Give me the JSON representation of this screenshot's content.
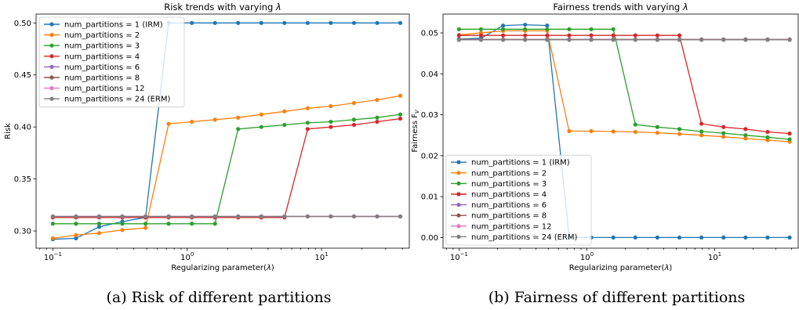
{
  "chart_data": [
    {
      "type": "line",
      "title": "Risk trends with varying λ",
      "xlabel": "Regularizing parameter(λ)",
      "ylabel": "Risk",
      "xscale": "log",
      "xlim": [
        0.075,
        45
      ],
      "ylim": [
        0.2835,
        0.5085
      ],
      "yticks": [
        0.3,
        0.35,
        0.4,
        0.45,
        0.5
      ],
      "ytick_labels": [
        "0.30",
        "0.35",
        "0.40",
        "0.45",
        "0.50"
      ],
      "xticks": [
        0.1,
        1,
        10
      ],
      "xtick_base": "10",
      "xtick_exps": [
        "−1",
        "0",
        "1"
      ],
      "legend_position": "upper-left",
      "caption": "(a) Risk of different partitions",
      "x": [
        0.1,
        0.1487,
        0.2212,
        0.329,
        0.4894,
        0.7279,
        1.0826,
        1.6103,
        2.395,
        3.5622,
        5.2983,
        7.8805,
        11.721,
        17.4333,
        25.9294,
        38.5662
      ],
      "series": [
        {
          "name": "num_partitions = 1 (IRM)",
          "color": "#1f77b4",
          "values": [
            0.292,
            0.293,
            0.304,
            0.309,
            0.313,
            0.5,
            0.5,
            0.5,
            0.5,
            0.5,
            0.5,
            0.5,
            0.5,
            0.5,
            0.5,
            0.5
          ]
        },
        {
          "name": "num_partitions = 2",
          "color": "#ff7f0e",
          "values": [
            0.293,
            0.296,
            0.298,
            0.301,
            0.303,
            0.403,
            0.405,
            0.407,
            0.409,
            0.412,
            0.415,
            0.418,
            0.42,
            0.423,
            0.426,
            0.43
          ]
        },
        {
          "name": "num_partitions = 3",
          "color": "#2ca02c",
          "values": [
            0.307,
            0.307,
            0.307,
            0.307,
            0.307,
            0.307,
            0.307,
            0.307,
            0.398,
            0.4,
            0.402,
            0.404,
            0.405,
            0.407,
            0.409,
            0.412
          ]
        },
        {
          "name": "num_partitions = 4",
          "color": "#d62728",
          "values": [
            0.313,
            0.313,
            0.313,
            0.313,
            0.313,
            0.313,
            0.313,
            0.313,
            0.313,
            0.313,
            0.313,
            0.398,
            0.4,
            0.402,
            0.405,
            0.408
          ]
        },
        {
          "name": "num_partitions = 6",
          "color": "#9467bd",
          "values": [
            0.314,
            0.314,
            0.314,
            0.314,
            0.314,
            0.314,
            0.314,
            0.314,
            0.314,
            0.314,
            0.314,
            0.314,
            0.314,
            0.314,
            0.314,
            0.314
          ]
        },
        {
          "name": "num_partitions = 8",
          "color": "#8c564b",
          "values": [
            0.314,
            0.314,
            0.314,
            0.314,
            0.314,
            0.314,
            0.314,
            0.314,
            0.314,
            0.314,
            0.314,
            0.314,
            0.314,
            0.314,
            0.314,
            0.314
          ]
        },
        {
          "name": "num_partitions = 12",
          "color": "#e377c2",
          "values": [
            0.314,
            0.314,
            0.314,
            0.314,
            0.314,
            0.314,
            0.314,
            0.314,
            0.314,
            0.314,
            0.314,
            0.314,
            0.314,
            0.314,
            0.314,
            0.314
          ]
        },
        {
          "name": "num_partitions = 24 (ERM)",
          "color": "#7f7f7f",
          "values": [
            0.314,
            0.314,
            0.314,
            0.314,
            0.314,
            0.314,
            0.314,
            0.314,
            0.314,
            0.314,
            0.314,
            0.314,
            0.314,
            0.314,
            0.314,
            0.314
          ]
        }
      ]
    },
    {
      "type": "line",
      "title": "Fairness trends with varying λ",
      "xlabel": "Regularizing parameter(λ)",
      "ylabel": "Fairness F",
      "ylabel_sub": "V",
      "xscale": "log",
      "xlim": [
        0.075,
        45
      ],
      "ylim": [
        -0.0026,
        0.0546
      ],
      "yticks": [
        0.0,
        0.01,
        0.02,
        0.03,
        0.04,
        0.05
      ],
      "ytick_labels": [
        "0.00",
        "0.01",
        "0.02",
        "0.03",
        "0.04",
        "0.05"
      ],
      "xticks": [
        0.1,
        1,
        10
      ],
      "xtick_base": "10",
      "xtick_exps": [
        "−1",
        "0",
        "1"
      ],
      "legend_position": "lower-left",
      "caption": "(b) Fairness of different partitions",
      "x": [
        0.1,
        0.1487,
        0.2212,
        0.329,
        0.4894,
        0.7279,
        1.0826,
        1.6103,
        2.395,
        3.5622,
        5.2983,
        7.8805,
        11.721,
        17.4333,
        25.9294,
        38.5662
      ],
      "series": [
        {
          "name": "num_partitions = 1 (IRM)",
          "color": "#1f77b4",
          "values": [
            0.0485,
            0.0487,
            0.0518,
            0.052,
            0.0518,
            0.0,
            0.0,
            0.0,
            0.0,
            0.0,
            0.0,
            0.0,
            0.0,
            0.0,
            0.0,
            0.0
          ]
        },
        {
          "name": "num_partitions = 2",
          "color": "#ff7f0e",
          "values": [
            0.0495,
            0.05,
            0.0505,
            0.0505,
            0.0505,
            0.026,
            0.026,
            0.0259,
            0.0258,
            0.0256,
            0.0253,
            0.025,
            0.0246,
            0.0242,
            0.0238,
            0.0234
          ]
        },
        {
          "name": "num_partitions = 3",
          "color": "#2ca02c",
          "values": [
            0.0509,
            0.0509,
            0.0509,
            0.0509,
            0.0509,
            0.0509,
            0.0509,
            0.0509,
            0.0276,
            0.027,
            0.0265,
            0.0259,
            0.0255,
            0.025,
            0.0245,
            0.024
          ]
        },
        {
          "name": "num_partitions = 4",
          "color": "#d62728",
          "values": [
            0.0494,
            0.0494,
            0.0494,
            0.0494,
            0.0494,
            0.0494,
            0.0494,
            0.0494,
            0.0494,
            0.0494,
            0.0494,
            0.0278,
            0.027,
            0.0265,
            0.0258,
            0.0254
          ]
        },
        {
          "name": "num_partitions = 6",
          "color": "#9467bd",
          "values": [
            0.0484,
            0.0484,
            0.0484,
            0.0484,
            0.0484,
            0.0484,
            0.0484,
            0.0484,
            0.0484,
            0.0484,
            0.0484,
            0.0484,
            0.0484,
            0.0484,
            0.0484,
            0.0484
          ]
        },
        {
          "name": "num_partitions = 8",
          "color": "#8c564b",
          "values": [
            0.0484,
            0.0484,
            0.0484,
            0.0484,
            0.0484,
            0.0484,
            0.0484,
            0.0484,
            0.0484,
            0.0484,
            0.0484,
            0.0484,
            0.0484,
            0.0484,
            0.0484,
            0.0484
          ]
        },
        {
          "name": "num_partitions = 12",
          "color": "#e377c2",
          "values": [
            0.0483,
            0.0483,
            0.0483,
            0.0483,
            0.0483,
            0.0483,
            0.0483,
            0.0483,
            0.0483,
            0.0483,
            0.0483,
            0.0483,
            0.0483,
            0.0483,
            0.0483,
            0.0483
          ]
        },
        {
          "name": "num_partitions = 24 (ERM)",
          "color": "#7f7f7f",
          "values": [
            0.0483,
            0.0483,
            0.0483,
            0.0483,
            0.0483,
            0.0483,
            0.0483,
            0.0483,
            0.0483,
            0.0483,
            0.0483,
            0.0483,
            0.0483,
            0.0483,
            0.0483,
            0.0483
          ]
        }
      ]
    }
  ]
}
